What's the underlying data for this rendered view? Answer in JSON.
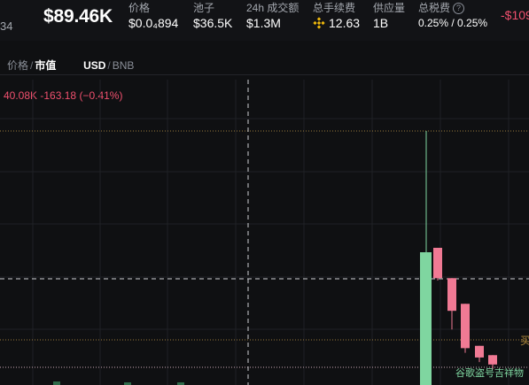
{
  "header": {
    "left_cut": "34",
    "market_cap": "$89.46K",
    "stats": [
      {
        "label": "价格",
        "value": "$0.0₄894"
      },
      {
        "label": "池子",
        "value": "$36.5K"
      },
      {
        "label": "24h 成交额",
        "value": "$1.3M"
      },
      {
        "label": "总手续费",
        "value": "12.63"
      },
      {
        "label": "供应量",
        "value": "1B"
      },
      {
        "label": "总税费",
        "value": "0.25% / 0.25%"
      }
    ],
    "change_cut": "-$109"
  },
  "toolbar": {
    "price_label": "价格",
    "mcap_label": "市值",
    "usd_label": "USD",
    "bnb_label": "BNB",
    "sep": "/"
  },
  "ohlc": {
    "value": "40.08K",
    "change": "-163.18",
    "change_pct": "(−0.41%)"
  },
  "annotations": {
    "right_cut": "买",
    "marker_text": "谷歌盗号吉祥物"
  },
  "colors": {
    "up": "#7fd6a0",
    "down": "#f07a94",
    "negative_text": "#f0506e",
    "background": "#0f1012",
    "gold_line": "#9a7a3c"
  },
  "chart_data": {
    "type": "candlestick",
    "candles": [
      {
        "open": 0.55,
        "close": 0.42,
        "high": 0.55,
        "low": 0.41
      },
      {
        "open": 0.42,
        "close": 0.28,
        "high": 0.42,
        "low": 0.2
      },
      {
        "open": 0.31,
        "close": 0.12,
        "high": 0.31,
        "low": 0.1
      },
      {
        "open": 0.13,
        "close": 0.08,
        "high": 0.13,
        "low": 0.06
      },
      {
        "open": 0.09,
        "close": 0.05,
        "high": 0.09,
        "low": 0.03
      }
    ]
  }
}
